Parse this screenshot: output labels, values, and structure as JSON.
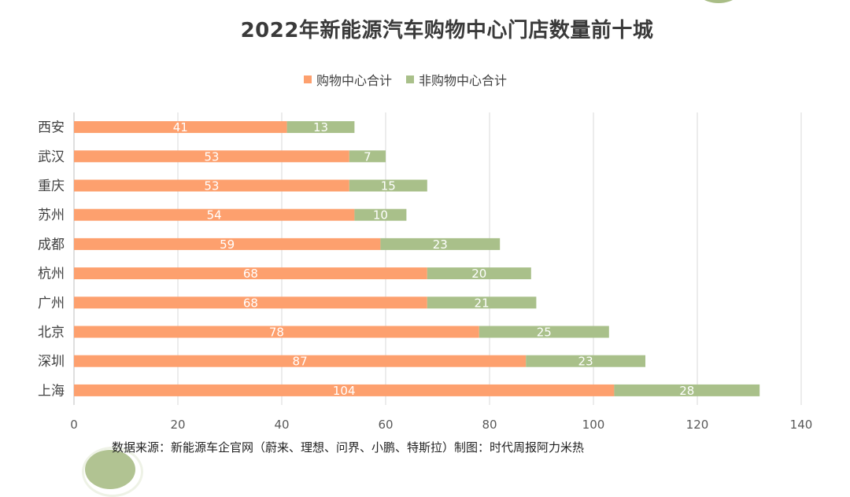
{
  "chart_data": {
    "type": "bar",
    "orientation": "horizontal",
    "stacked": true,
    "title": "2022年新能源汽车购物中心门店数量前十城",
    "categories": [
      "西安",
      "武汉",
      "重庆",
      "苏州",
      "成都",
      "杭州",
      "广州",
      "北京",
      "深圳",
      "上海"
    ],
    "series": [
      {
        "name": "购物中心合计",
        "color": "#fda06e",
        "values": [
          41,
          53,
          53,
          54,
          59,
          68,
          68,
          78,
          87,
          104
        ]
      },
      {
        "name": "非购物中心合计",
        "color": "#a9c08a",
        "values": [
          13,
          7,
          15,
          10,
          23,
          20,
          21,
          25,
          23,
          28
        ]
      }
    ],
    "xlim": [
      0,
      140
    ],
    "xticks": [
      0,
      20,
      40,
      60,
      80,
      100,
      120,
      140
    ],
    "grid": true,
    "legend_position": "top-center",
    "xlabel": "",
    "ylabel": ""
  },
  "source_text": "数据来源：新能源车企官网（蔚来、理想、问界、小鹏、特斯拉）制图：时代周报阿力米热"
}
